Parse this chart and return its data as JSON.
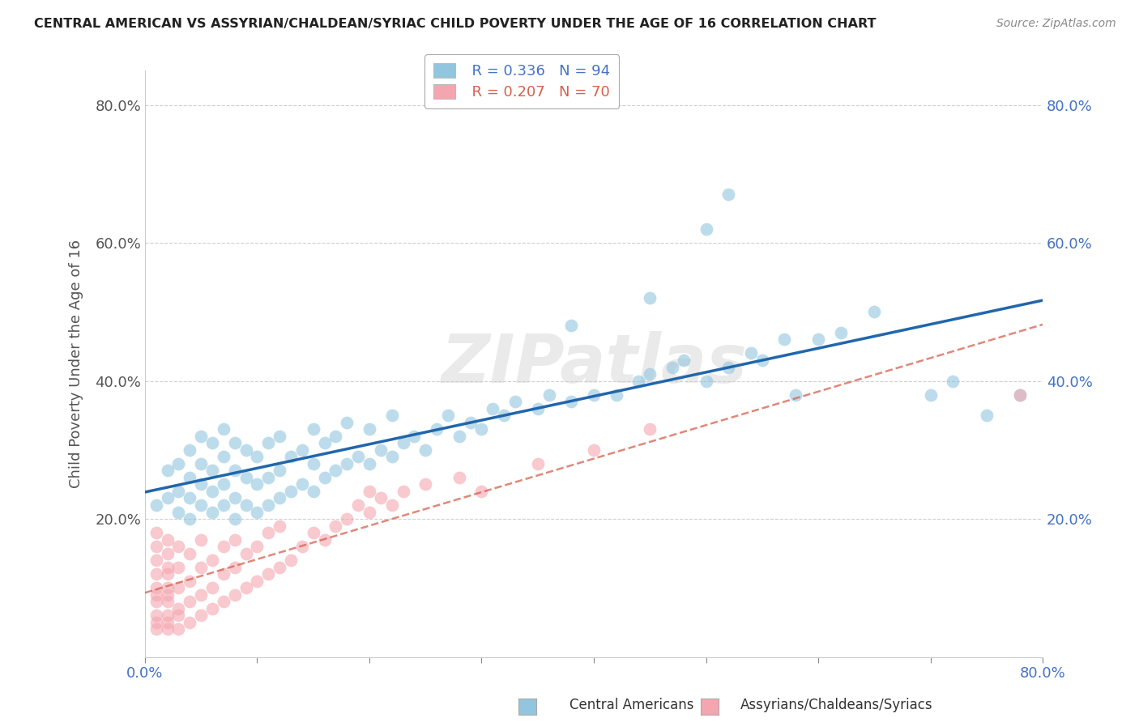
{
  "title": "CENTRAL AMERICAN VS ASSYRIAN/CHALDEAN/SYRIAC CHILD POVERTY UNDER THE AGE OF 16 CORRELATION CHART",
  "source": "Source: ZipAtlas.com",
  "ylabel": "Child Poverty Under the Age of 16",
  "xlim": [
    0.0,
    0.8
  ],
  "ylim": [
    0.0,
    0.85
  ],
  "yticks": [
    0.0,
    0.2,
    0.4,
    0.6,
    0.8
  ],
  "yticklabels_left": [
    "",
    "20.0%",
    "40.0%",
    "60.0%",
    "80.0%"
  ],
  "yticklabels_right": [
    "",
    "20.0%",
    "40.0%",
    "60.0%",
    "80.0%"
  ],
  "xtick_vals": [
    0.0,
    0.1,
    0.2,
    0.3,
    0.4,
    0.5,
    0.6,
    0.7,
    0.8
  ],
  "xticklabels": [
    "0.0%",
    "",
    "",
    "",
    "",
    "",
    "",
    "",
    "80.0%"
  ],
  "blue_R": 0.336,
  "blue_N": 94,
  "pink_R": 0.207,
  "pink_N": 70,
  "blue_color": "#92c5de",
  "pink_color": "#f4a6b0",
  "blue_line_color": "#2166ac",
  "pink_line_color": "#d6604d",
  "watermark_text": "ZIPatlas",
  "background_color": "#ffffff",
  "grid_color": "#d0d0d0",
  "title_color": "#222222",
  "left_tick_color": "#555555",
  "right_tick_color": "#4472c4",
  "bottom_tick_color": "#4472c4",
  "blue_scatter_x": [
    0.01,
    0.02,
    0.02,
    0.03,
    0.03,
    0.03,
    0.04,
    0.04,
    0.04,
    0.04,
    0.05,
    0.05,
    0.05,
    0.05,
    0.06,
    0.06,
    0.06,
    0.06,
    0.07,
    0.07,
    0.07,
    0.07,
    0.08,
    0.08,
    0.08,
    0.08,
    0.09,
    0.09,
    0.09,
    0.1,
    0.1,
    0.1,
    0.11,
    0.11,
    0.11,
    0.12,
    0.12,
    0.12,
    0.13,
    0.13,
    0.14,
    0.14,
    0.15,
    0.15,
    0.15,
    0.16,
    0.16,
    0.17,
    0.17,
    0.18,
    0.18,
    0.19,
    0.2,
    0.2,
    0.21,
    0.22,
    0.22,
    0.23,
    0.24,
    0.25,
    0.26,
    0.27,
    0.28,
    0.29,
    0.3,
    0.31,
    0.32,
    0.33,
    0.35,
    0.36,
    0.38,
    0.4,
    0.42,
    0.44,
    0.45,
    0.47,
    0.48,
    0.5,
    0.52,
    0.54,
    0.55,
    0.57,
    0.58,
    0.6,
    0.62,
    0.65,
    0.7,
    0.72,
    0.75,
    0.78,
    0.5,
    0.52,
    0.45,
    0.38
  ],
  "blue_scatter_y": [
    0.22,
    0.23,
    0.27,
    0.21,
    0.24,
    0.28,
    0.2,
    0.23,
    0.26,
    0.3,
    0.22,
    0.25,
    0.28,
    0.32,
    0.21,
    0.24,
    0.27,
    0.31,
    0.22,
    0.25,
    0.29,
    0.33,
    0.2,
    0.23,
    0.27,
    0.31,
    0.22,
    0.26,
    0.3,
    0.21,
    0.25,
    0.29,
    0.22,
    0.26,
    0.31,
    0.23,
    0.27,
    0.32,
    0.24,
    0.29,
    0.25,
    0.3,
    0.24,
    0.28,
    0.33,
    0.26,
    0.31,
    0.27,
    0.32,
    0.28,
    0.34,
    0.29,
    0.28,
    0.33,
    0.3,
    0.29,
    0.35,
    0.31,
    0.32,
    0.3,
    0.33,
    0.35,
    0.32,
    0.34,
    0.33,
    0.36,
    0.35,
    0.37,
    0.36,
    0.38,
    0.37,
    0.38,
    0.38,
    0.4,
    0.41,
    0.42,
    0.43,
    0.4,
    0.42,
    0.44,
    0.43,
    0.46,
    0.38,
    0.46,
    0.47,
    0.5,
    0.38,
    0.4,
    0.35,
    0.38,
    0.62,
    0.67,
    0.52,
    0.48
  ],
  "pink_scatter_x": [
    0.01,
    0.01,
    0.01,
    0.01,
    0.01,
    0.01,
    0.01,
    0.01,
    0.01,
    0.01,
    0.02,
    0.02,
    0.02,
    0.02,
    0.02,
    0.02,
    0.02,
    0.02,
    0.02,
    0.02,
    0.03,
    0.03,
    0.03,
    0.03,
    0.03,
    0.03,
    0.04,
    0.04,
    0.04,
    0.04,
    0.05,
    0.05,
    0.05,
    0.05,
    0.06,
    0.06,
    0.06,
    0.07,
    0.07,
    0.07,
    0.08,
    0.08,
    0.08,
    0.09,
    0.09,
    0.1,
    0.1,
    0.11,
    0.11,
    0.12,
    0.12,
    0.13,
    0.14,
    0.15,
    0.16,
    0.17,
    0.18,
    0.19,
    0.2,
    0.21,
    0.22,
    0.23,
    0.25,
    0.28,
    0.3,
    0.35,
    0.4,
    0.45,
    0.2,
    0.78
  ],
  "pink_scatter_y": [
    0.04,
    0.06,
    0.08,
    0.1,
    0.12,
    0.14,
    0.16,
    0.18,
    0.05,
    0.09,
    0.04,
    0.06,
    0.08,
    0.1,
    0.13,
    0.15,
    0.17,
    0.05,
    0.09,
    0.12,
    0.04,
    0.07,
    0.1,
    0.13,
    0.16,
    0.06,
    0.05,
    0.08,
    0.11,
    0.15,
    0.06,
    0.09,
    0.13,
    0.17,
    0.07,
    0.1,
    0.14,
    0.08,
    0.12,
    0.16,
    0.09,
    0.13,
    0.17,
    0.1,
    0.15,
    0.11,
    0.16,
    0.12,
    0.18,
    0.13,
    0.19,
    0.14,
    0.16,
    0.18,
    0.17,
    0.19,
    0.2,
    0.22,
    0.21,
    0.23,
    0.22,
    0.24,
    0.25,
    0.26,
    0.24,
    0.28,
    0.3,
    0.33,
    0.24,
    0.38
  ],
  "legend_label_blue": "  R = 0.336   N = 94",
  "legend_label_pink": "  R = 0.207   N = 70",
  "legend_text_blue": "#4472c4",
  "legend_text_pink": "#d6604d",
  "bottom_legend_blue": "Central Americans",
  "bottom_legend_pink": "Assyrians/Chaldeans/Syriacs"
}
